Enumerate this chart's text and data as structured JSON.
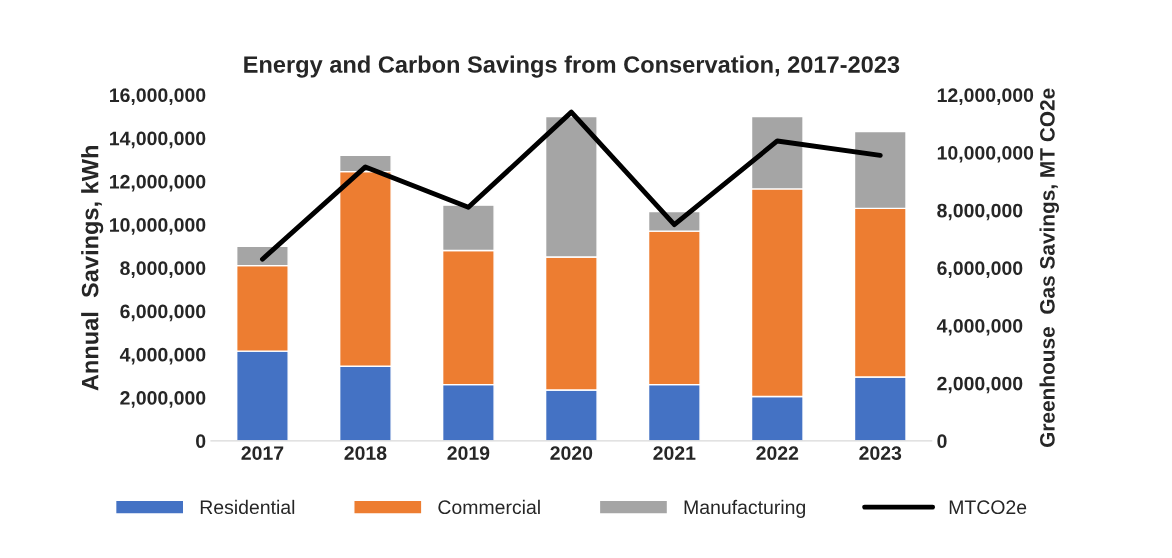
{
  "chart_data": {
    "type": "bar",
    "title": "Energy and Carbon Savings from Conservation, 2017-2023",
    "ylabel": "Annual  Savings, kWh",
    "y2label": "Greenhouse  Gas Savings, MT CO2e",
    "categories": [
      "2017",
      "2018",
      "2019",
      "2020",
      "2021",
      "2022",
      "2023"
    ],
    "stacked": true,
    "series": [
      {
        "name": "Residential",
        "color": "#4472c4",
        "values": [
          4150000,
          3450000,
          2600000,
          2350000,
          2600000,
          2050000,
          2950000
        ]
      },
      {
        "name": "Commercial",
        "color": "#ed7d31",
        "values": [
          3950000,
          9000000,
          6200000,
          6150000,
          7100000,
          9600000,
          7800000
        ]
      },
      {
        "name": "Manufacturing",
        "color": "#a5a5a5",
        "values": [
          900000,
          750000,
          2100000,
          6500000,
          900000,
          3350000,
          3550000
        ]
      },
      {
        "name": "MTCO2e",
        "color": "#000000",
        "type": "line",
        "axis": "y2",
        "values": [
          6300000,
          9500000,
          8100000,
          11400000,
          7500000,
          10400000,
          9900000
        ]
      }
    ],
    "ylim": [
      0,
      16000000
    ],
    "yticks": [
      {
        "value": 0,
        "label": "0"
      },
      {
        "value": 2000000,
        "label": "2,000,000"
      },
      {
        "value": 4000000,
        "label": "4,000,000"
      },
      {
        "value": 6000000,
        "label": "6,000,000"
      },
      {
        "value": 8000000,
        "label": "8,000,000"
      },
      {
        "value": 10000000,
        "label": "10,000,000"
      },
      {
        "value": 12000000,
        "label": "12,000,000"
      },
      {
        "value": 14000000,
        "label": "14,000,000"
      },
      {
        "value": 16000000,
        "label": "16,000,000"
      }
    ],
    "y2lim": [
      0,
      12000000
    ],
    "y2ticks": [
      {
        "value": 0,
        "label": "0"
      },
      {
        "value": 2000000,
        "label": "2,000,000"
      },
      {
        "value": 4000000,
        "label": "4,000,000"
      },
      {
        "value": 6000000,
        "label": "6,000,000"
      },
      {
        "value": 8000000,
        "label": "8,000,000"
      },
      {
        "value": 10000000,
        "label": "10,000,000"
      },
      {
        "value": 12000000,
        "label": "12,000,000"
      }
    ],
    "legend": "bottom",
    "grid": false,
    "marker": "none",
    "line_style": "solid"
  }
}
